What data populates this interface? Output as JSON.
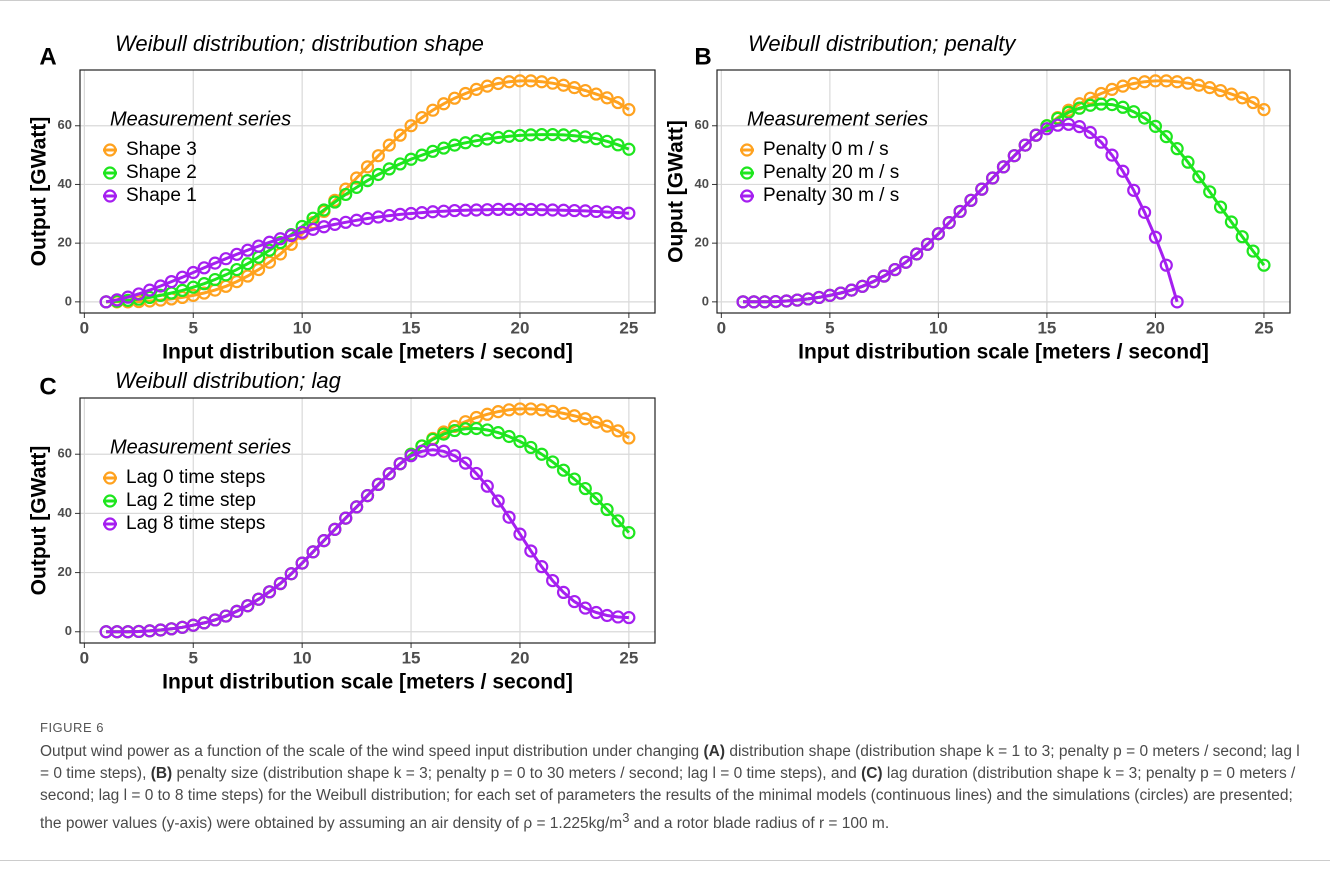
{
  "chart_data": [
    {
      "type": "line",
      "panel_label": "A",
      "title": "Weibull distribution; distribution shape",
      "xlabel": "Input distribution scale [meters / second]",
      "ylabel": "Output [GWatt]",
      "legend_title": "Measurement series",
      "legend": "top-left",
      "grid": true,
      "xlim": [
        -0.2,
        26.2
      ],
      "ylim": [
        -3.8,
        79
      ],
      "xticks": [
        0,
        5,
        10,
        15,
        20,
        25
      ],
      "yticks": [
        0,
        20,
        40,
        60
      ],
      "x": [
        1,
        1.5,
        2,
        2.5,
        3,
        3.5,
        4,
        4.5,
        5,
        5.5,
        6,
        6.5,
        7,
        7.5,
        8,
        8.5,
        9,
        9.5,
        10,
        10.5,
        11,
        11.5,
        12,
        12.5,
        13,
        13.5,
        14,
        14.5,
        15,
        15.5,
        16,
        16.5,
        17,
        17.5,
        18,
        18.5,
        19,
        19.5,
        20,
        20.5,
        21,
        21.5,
        22,
        22.5,
        23,
        23.5,
        24,
        24.5,
        25
      ],
      "series": [
        {
          "name": "Shape 3",
          "color": "#ffa21f",
          "values": [
            0,
            0,
            0,
            0.1,
            0.3,
            0.6,
            1,
            1.5,
            2.2,
            3,
            4,
            5.3,
            6.9,
            8.8,
            11,
            13.5,
            16.3,
            19.6,
            23.2,
            27,
            30.8,
            34.6,
            38.4,
            42.2,
            46,
            49.8,
            53.4,
            56.8,
            60,
            62.8,
            65.3,
            67.5,
            69.4,
            71,
            72.4,
            73.5,
            74.4,
            75,
            75.3,
            75.3,
            75,
            74.5,
            73.8,
            73,
            72,
            70.8,
            69.5,
            67.9,
            65.5
          ]
        },
        {
          "name": "Shape 2",
          "color": "#1ee61e",
          "values": [
            0,
            0.2,
            0.5,
            0.9,
            1.5,
            2.2,
            3,
            3.9,
            5,
            6.2,
            7.6,
            9.2,
            11,
            13,
            15.2,
            17.6,
            20.2,
            22.9,
            25.7,
            28.5,
            31.3,
            34,
            36.6,
            39,
            41.3,
            43.4,
            45.3,
            47,
            48.6,
            50,
            51.3,
            52.4,
            53.4,
            54.2,
            54.9,
            55.5,
            56,
            56.4,
            56.7,
            56.9,
            57,
            57,
            56.9,
            56.6,
            56.2,
            55.6,
            54.7,
            53.5,
            52
          ]
        },
        {
          "name": "Shape 1",
          "color": "#a51ff0",
          "values": [
            0,
            0.7,
            1.6,
            2.7,
            4,
            5.4,
            6.9,
            8.4,
            10,
            11.6,
            13.2,
            14.7,
            16.2,
            17.6,
            19,
            20.3,
            21.5,
            22.6,
            23.7,
            24.7,
            25.6,
            26.4,
            27.1,
            27.8,
            28.4,
            28.9,
            29.4,
            29.8,
            30.1,
            30.4,
            30.7,
            30.9,
            31.1,
            31.2,
            31.3,
            31.4,
            31.5,
            31.5,
            31.5,
            31.5,
            31.4,
            31.3,
            31.2,
            31.1,
            31,
            30.8,
            30.6,
            30.4,
            30.2
          ]
        }
      ]
    },
    {
      "type": "line",
      "panel_label": "B",
      "title": "Weibull distribution; penalty",
      "xlabel": "Input distribution scale [meters / second]",
      "ylabel": "Ouput [GWatt]",
      "legend_title": "Measurement series",
      "legend": "top-left",
      "grid": true,
      "xlim": [
        -0.2,
        26.2
      ],
      "ylim": [
        -3.8,
        79
      ],
      "xticks": [
        0,
        5,
        10,
        15,
        20,
        25
      ],
      "yticks": [
        0,
        20,
        40,
        60
      ],
      "x": [
        1,
        1.5,
        2,
        2.5,
        3,
        3.5,
        4,
        4.5,
        5,
        5.5,
        6,
        6.5,
        7,
        7.5,
        8,
        8.5,
        9,
        9.5,
        10,
        10.5,
        11,
        11.5,
        12,
        12.5,
        13,
        13.5,
        14,
        14.5,
        15,
        15.5,
        16,
        16.5,
        17,
        17.5,
        18,
        18.5,
        19,
        19.5,
        20,
        20.5,
        21,
        21.5,
        22,
        22.5,
        23,
        23.5,
        24,
        24.5,
        25
      ],
      "series": [
        {
          "name": "Penalty 0 m / s",
          "color": "#ffa21f",
          "values": [
            0,
            0,
            0,
            0.1,
            0.3,
            0.6,
            1,
            1.5,
            2.2,
            3,
            4,
            5.3,
            6.9,
            8.8,
            11,
            13.5,
            16.3,
            19.6,
            23.2,
            27,
            30.8,
            34.6,
            38.4,
            42.2,
            46,
            49.8,
            53.4,
            56.8,
            60,
            62.8,
            65.3,
            67.5,
            69.4,
            71,
            72.4,
            73.5,
            74.4,
            75,
            75.3,
            75.3,
            75,
            74.5,
            73.8,
            73,
            72,
            70.8,
            69.5,
            67.9,
            65.5
          ]
        },
        {
          "name": "Penalty 20 m / s",
          "color": "#1ee61e",
          "values": [
            0,
            0,
            0,
            0.1,
            0.3,
            0.6,
            1,
            1.5,
            2.2,
            3,
            4,
            5.3,
            6.9,
            8.8,
            11,
            13.5,
            16.3,
            19.6,
            23.2,
            27,
            30.8,
            34.6,
            38.4,
            42.2,
            46,
            49.8,
            53.4,
            56.8,
            60,
            62.5,
            64.6,
            66,
            67,
            67.4,
            67.2,
            66.3,
            64.8,
            62.6,
            59.8,
            56.3,
            52.2,
            47.6,
            42.6,
            37.5,
            32.3,
            27.2,
            22.2,
            17.3,
            12.5
          ]
        },
        {
          "name": "Penalty 30 m / s",
          "color": "#a51ff0",
          "values": [
            0,
            0,
            0,
            0.1,
            0.3,
            0.6,
            1,
            1.5,
            2.2,
            3,
            4,
            5.3,
            6.9,
            8.8,
            11,
            13.5,
            16.3,
            19.6,
            23.2,
            27,
            30.8,
            34.6,
            38.4,
            42.2,
            46,
            49.8,
            53.4,
            56.8,
            59,
            60.2,
            60.5,
            59.7,
            57.7,
            54.4,
            50,
            44.5,
            38,
            30.5,
            22,
            12.5,
            0,
            null,
            null,
            null,
            null,
            null,
            null,
            null,
            null
          ]
        }
      ]
    },
    {
      "type": "line",
      "panel_label": "C",
      "title": "Weibull distribution; lag",
      "xlabel": "Input distribution scale [meters / second]",
      "ylabel": "Output [GWatt]",
      "legend_title": "Measurement series",
      "legend": "top-left",
      "grid": true,
      "xlim": [
        -0.2,
        26.2
      ],
      "ylim": [
        -3.8,
        79
      ],
      "xticks": [
        0,
        5,
        10,
        15,
        20,
        25
      ],
      "yticks": [
        0,
        20,
        40,
        60
      ],
      "x": [
        1,
        1.5,
        2,
        2.5,
        3,
        3.5,
        4,
        4.5,
        5,
        5.5,
        6,
        6.5,
        7,
        7.5,
        8,
        8.5,
        9,
        9.5,
        10,
        10.5,
        11,
        11.5,
        12,
        12.5,
        13,
        13.5,
        14,
        14.5,
        15,
        15.5,
        16,
        16.5,
        17,
        17.5,
        18,
        18.5,
        19,
        19.5,
        20,
        20.5,
        21,
        21.5,
        22,
        22.5,
        23,
        23.5,
        24,
        24.5,
        25
      ],
      "series": [
        {
          "name": "Lag 0 time steps",
          "color": "#ffa21f",
          "values": [
            0,
            0,
            0,
            0.1,
            0.3,
            0.6,
            1,
            1.5,
            2.2,
            3,
            4,
            5.3,
            6.9,
            8.8,
            11,
            13.5,
            16.3,
            19.6,
            23.2,
            27,
            30.8,
            34.6,
            38.4,
            42.2,
            46,
            49.8,
            53.4,
            56.8,
            60,
            62.8,
            65.3,
            67.5,
            69.4,
            71,
            72.4,
            73.5,
            74.4,
            75,
            75.3,
            75.3,
            75,
            74.5,
            73.8,
            73,
            72,
            70.8,
            69.5,
            67.9,
            65.5
          ]
        },
        {
          "name": "Lag 2 time step",
          "color": "#1ee61e",
          "values": [
            0,
            0,
            0,
            0.1,
            0.3,
            0.6,
            1,
            1.5,
            2.2,
            3,
            4,
            5.3,
            6.9,
            8.8,
            11,
            13.5,
            16.3,
            19.6,
            23.2,
            27,
            30.8,
            34.6,
            38.4,
            42.2,
            46,
            49.8,
            53.4,
            56.8,
            60,
            62.8,
            65,
            66.8,
            68,
            68.6,
            68.7,
            68.2,
            67.3,
            66,
            64.3,
            62.3,
            60,
            57.4,
            54.6,
            51.6,
            48.4,
            45,
            41.3,
            37.5,
            33.5
          ]
        },
        {
          "name": "Lag 8 time steps",
          "color": "#a51ff0",
          "values": [
            0,
            0,
            0,
            0.1,
            0.3,
            0.6,
            1,
            1.5,
            2.2,
            3,
            4,
            5.3,
            6.9,
            8.8,
            11,
            13.5,
            16.3,
            19.6,
            23.2,
            27,
            30.8,
            34.6,
            38.4,
            42.2,
            46,
            49.8,
            53.4,
            56.8,
            59.5,
            61,
            61.5,
            61,
            59.5,
            57,
            53.5,
            49.2,
            44.2,
            38.7,
            33,
            27.3,
            22,
            17.3,
            13.3,
            10.2,
            8,
            6.5,
            5.5,
            5,
            4.8
          ]
        }
      ]
    }
  ],
  "caption": {
    "label": "FIGURE 6",
    "parts": [
      "Output wind power as a function of the scale of the wind speed input distribution under changing ",
      "(A)",
      " distribution shape (distribution shape k = 1 to 3; penalty p = 0 meters / second; lag l = 0 time steps), ",
      "(B)",
      " penalty size (distribution shape k = 3; penalty p = 0 to 30 meters / second; lag l = 0 time steps), and ",
      "(C)",
      " lag duration (distribution shape k = 3; penalty p = 0 meters / second; lag l = 0 to 8 time steps) for the Weibull distribution; for each set of parameters the results of the minimal models (continuous lines) and the simulations (circles) are presented; the power values (y-axis) were obtained by assuming an air density of ρ = 1.225kg/m",
      "3",
      " and a rotor blade radius of r = 100 m."
    ]
  }
}
